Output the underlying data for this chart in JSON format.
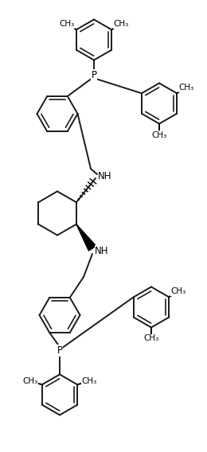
{
  "background_color": "#ffffff",
  "line_color": "#1a1a1a",
  "line_width": 1.4,
  "figsize": [
    2.6,
    5.68
  ],
  "dpi": 100,
  "xlim": [
    0,
    2.6
  ],
  "ylim": [
    0,
    5.68
  ]
}
